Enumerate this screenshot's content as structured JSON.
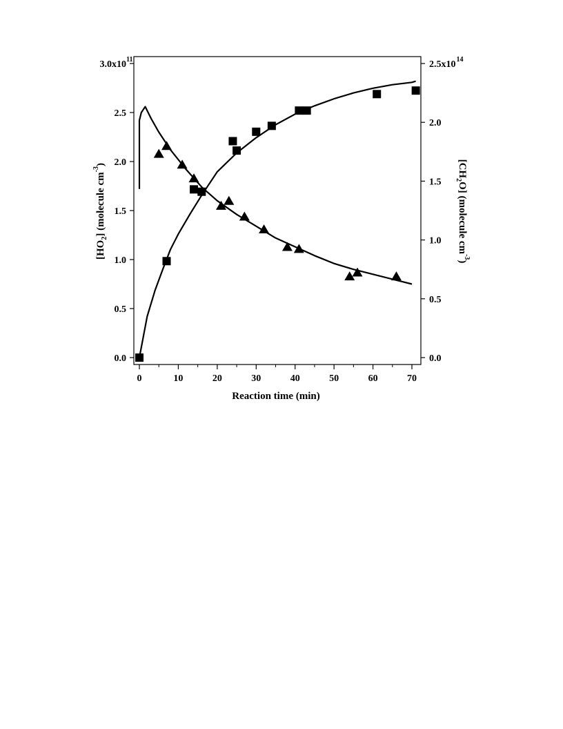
{
  "chart_data": {
    "type": "scatter",
    "xlabel": "Reaction time (min)",
    "xlim": [
      -1.5,
      72
    ],
    "x_ticks": [
      0,
      10,
      20,
      30,
      40,
      50,
      60,
      70
    ],
    "x_tick_labels": [
      "0",
      "10",
      "20",
      "30",
      "40",
      "50",
      "60",
      "70"
    ],
    "y_left": {
      "label_parts": [
        "[HO",
        "2",
        "] (molecule cm",
        "-3",
        ")"
      ],
      "lim": [
        0,
        300000000000.0
      ],
      "ticks": [
        0,
        50000000000.0,
        100000000000.0,
        150000000000.0,
        200000000000.0,
        250000000000.0,
        300000000000.0
      ],
      "tick_labels": [
        "0.0",
        "0.5",
        "1.0",
        "1.5",
        "2.0",
        "2.5",
        "3.0x10"
      ],
      "top_exponent": "11"
    },
    "y_right": {
      "label_parts": [
        "[CH",
        "2",
        "O] (molecule cm",
        "-3",
        ")"
      ],
      "lim": [
        0,
        250000000000000.0
      ],
      "ticks": [
        0,
        50000000000000.0,
        100000000000000.0,
        150000000000000.0,
        200000000000000.0,
        250000000000000.0
      ],
      "tick_labels": [
        "0.0",
        "0.5",
        "1.0",
        "1.5",
        "2.0",
        "2.5x10"
      ],
      "top_exponent": "14"
    },
    "series": [
      {
        "marker": "triangle",
        "axis": "left",
        "points": [
          [
            5,
            208000000000.0
          ],
          [
            7,
            216000000000.0
          ],
          [
            11,
            197000000000.0
          ],
          [
            14,
            183000000000.0
          ],
          [
            21,
            155000000000.0
          ],
          [
            23,
            160000000000.0
          ],
          [
            27,
            144000000000.0
          ],
          [
            32,
            131000000000.0
          ],
          [
            38,
            113000000000.0
          ],
          [
            41,
            111000000000.0
          ],
          [
            54,
            83000000000.0
          ],
          [
            56,
            87000000000.0
          ],
          [
            66,
            83000000000.0
          ]
        ]
      },
      {
        "marker": "square",
        "axis": "right",
        "points": [
          [
            0,
            0.0
          ],
          [
            7,
            82000000000000.0
          ],
          [
            14,
            143000000000000.0
          ],
          [
            16,
            141000000000000.0
          ],
          [
            24,
            184000000000000.0
          ],
          [
            25,
            176000000000000.0
          ],
          [
            30,
            192000000000000.0
          ],
          [
            34,
            197000000000000.0
          ],
          [
            41,
            210000000000000.0
          ],
          [
            43,
            210000000000000.0
          ],
          [
            61,
            224000000000000.0
          ],
          [
            71,
            227000000000000.0
          ]
        ]
      },
      {
        "mark": "line",
        "axis": "left",
        "points": [
          [
            0,
            172000000000.0
          ],
          [
            0,
            242000000000.0
          ],
          [
            0.5,
            250000000000.0
          ],
          [
            1.5,
            256000000000.0
          ],
          [
            3,
            244000000000.0
          ],
          [
            5,
            230000000000.0
          ],
          [
            8,
            212000000000.0
          ],
          [
            12,
            192000000000.0
          ],
          [
            16,
            174000000000.0
          ],
          [
            20,
            160000000000.0
          ],
          [
            25,
            146000000000.0
          ],
          [
            30,
            134000000000.0
          ],
          [
            35,
            122000000000.0
          ],
          [
            40,
            113000000000.0
          ],
          [
            45,
            104000000000.0
          ],
          [
            50,
            96000000000.0
          ],
          [
            55,
            90000000000.0
          ],
          [
            60,
            85000000000.0
          ],
          [
            65,
            80000000000.0
          ],
          [
            70,
            75000000000.0
          ]
        ]
      },
      {
        "mark": "line",
        "axis": "right",
        "points": [
          [
            0,
            0.0
          ],
          [
            2,
            35000000000000.0
          ],
          [
            4,
            57000000000000.0
          ],
          [
            6,
            75000000000000.0
          ],
          [
            8,
            92000000000000.0
          ],
          [
            10,
            105000000000000.0
          ],
          [
            13,
            122000000000000.0
          ],
          [
            16,
            138000000000000.0
          ],
          [
            20,
            158000000000000.0
          ],
          [
            25,
            174000000000000.0
          ],
          [
            30,
            187000000000000.0
          ],
          [
            35,
            198000000000000.0
          ],
          [
            40,
            207000000000000.0
          ],
          [
            45,
            214000000000000.0
          ],
          [
            50,
            220000000000000.0
          ],
          [
            55,
            225000000000000.0
          ],
          [
            60,
            229000000000000.0
          ],
          [
            65,
            232000000000000.0
          ],
          [
            70,
            234000000000000.0
          ],
          [
            71,
            235000000000000.0
          ]
        ]
      }
    ]
  }
}
